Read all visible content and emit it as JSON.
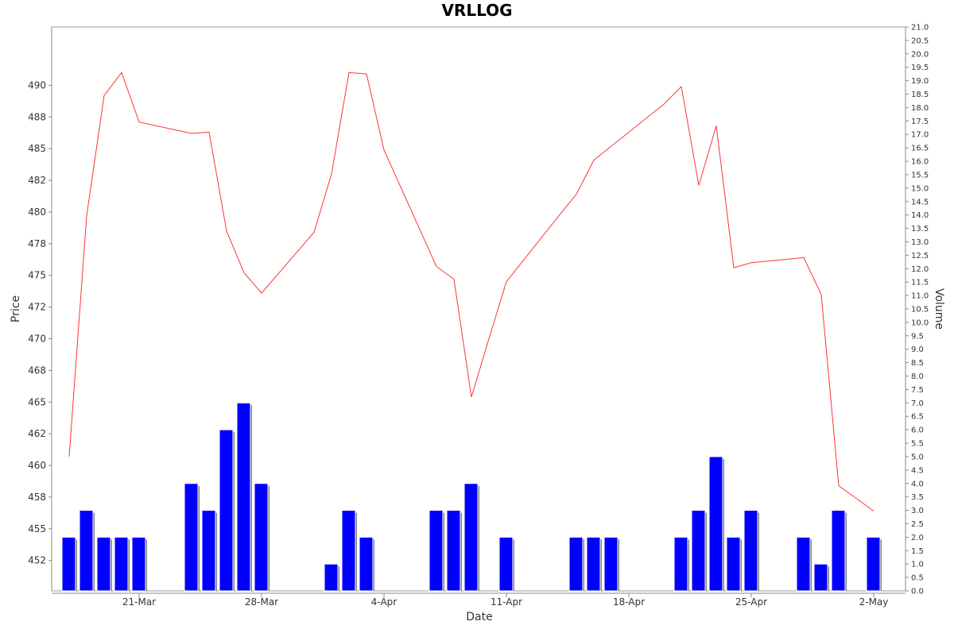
{
  "chart_data": {
    "type": "bar",
    "title": "VRLLOG",
    "xlabel": "Date",
    "ylabel": "Price",
    "y2label": "Volume",
    "x_ticks": [
      "21-Mar",
      "28-Mar",
      "4-Apr",
      "11-Apr",
      "18-Apr",
      "25-Apr",
      "2-May"
    ],
    "price_ticks": [
      "452",
      "455",
      "458",
      "460",
      "462",
      "465",
      "468",
      "470",
      "472",
      "475",
      "478",
      "480",
      "482",
      "485",
      "488",
      "490"
    ],
    "volume_ticks": [
      "0.0",
      "0.5",
      "1.0",
      "1.5",
      "2.0",
      "2.5",
      "3.0",
      "3.5",
      "4.0",
      "4.5",
      "5.0",
      "5.5",
      "6.0",
      "6.5",
      "7.0",
      "7.5",
      "8.0",
      "8.5",
      "9.0",
      "9.5",
      "10.0",
      "10.5",
      "11.0",
      "11.5",
      "12.0",
      "12.5",
      "13.0",
      "13.5",
      "14.0",
      "14.5",
      "15.0",
      "15.5",
      "16.0",
      "16.5",
      "17.0",
      "17.5",
      "18.0",
      "18.5",
      "19.0",
      "19.5",
      "20.0",
      "20.5",
      "21.0"
    ],
    "price_range": [
      449.5,
      494
    ],
    "volume_range": [
      0,
      21
    ],
    "colors": {
      "price_line": "#ff3333",
      "volume_bar": "#0000ff",
      "volume_shadow": "#808080"
    },
    "series": [
      {
        "name": "Price",
        "type": "line",
        "x": [
          "2024-03-17",
          "2024-03-18",
          "2024-03-19",
          "2024-03-20",
          "2024-03-21",
          "2024-03-24",
          "2024-03-25",
          "2024-03-26",
          "2024-03-27",
          "2024-03-28",
          "2024-03-31",
          "2024-04-01",
          "2024-04-02",
          "2024-04-03",
          "2024-04-04",
          "2024-04-07",
          "2024-04-08",
          "2024-04-09",
          "2024-04-10",
          "2024-04-11",
          "2024-04-14",
          "2024-04-15",
          "2024-04-16",
          "2024-04-17",
          "2024-04-20",
          "2024-04-21",
          "2024-04-22",
          "2024-04-23",
          "2024-04-24",
          "2024-04-25",
          "2024-04-28",
          "2024-04-29",
          "2024-04-30",
          "2024-05-01",
          "2024-05-02"
        ],
        "values": [
          460.1,
          479.1,
          488.6,
          490.4,
          486.5,
          485.6,
          485.7,
          477.9,
          474.6,
          473.0,
          477.8,
          482.4,
          490.4,
          490.3,
          484.3,
          475.1,
          474.1,
          464.8,
          469.4,
          473.9,
          479.1,
          480.8,
          483.5,
          484.6,
          487.9,
          489.3,
          481.5,
          486.2,
          475.0,
          475.4,
          475.8,
          472.9,
          457.8,
          456.8,
          455.8
        ]
      },
      {
        "name": "Volume",
        "type": "bar",
        "x": [
          "2024-03-17",
          "2024-03-18",
          "2024-03-19",
          "2024-03-20",
          "2024-03-21",
          "2024-03-24",
          "2024-03-25",
          "2024-03-26",
          "2024-03-27",
          "2024-03-28",
          "2024-04-01",
          "2024-04-02",
          "2024-04-03",
          "2024-04-07",
          "2024-04-08",
          "2024-04-09",
          "2024-04-11",
          "2024-04-15",
          "2024-04-16",
          "2024-04-17",
          "2024-04-21",
          "2024-04-22",
          "2024-04-23",
          "2024-04-24",
          "2024-04-25",
          "2024-04-28",
          "2024-04-29",
          "2024-04-30",
          "2024-05-02"
        ],
        "values": [
          2,
          3,
          2,
          2,
          2,
          4,
          3,
          6,
          7,
          4,
          1,
          3,
          2,
          3,
          3,
          4,
          2,
          2,
          2,
          2,
          2,
          3,
          5,
          2,
          3,
          2,
          1,
          3,
          2
        ]
      }
    ]
  }
}
